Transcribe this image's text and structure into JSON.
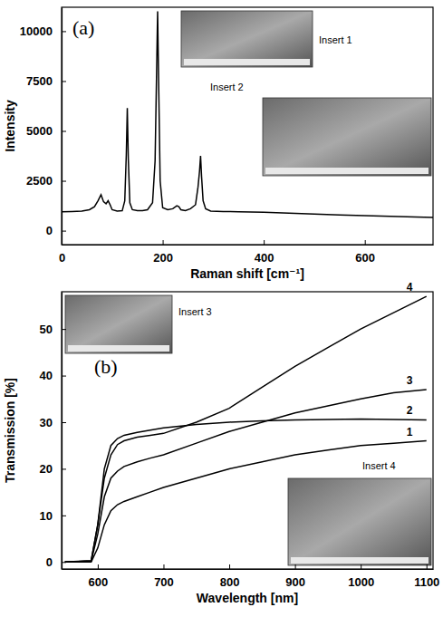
{
  "chart_data": [
    {
      "type": "line",
      "title": "(a)",
      "x_label": "Raman shift [cm⁻¹]",
      "y_label": "Intensity",
      "annotations": [
        "Insert 1",
        "Insert 2"
      ],
      "color": "#000000",
      "x": [
        0,
        20,
        40,
        55,
        65,
        72,
        78,
        83,
        88,
        92,
        96,
        100,
        110,
        120,
        125,
        128,
        130,
        132,
        135,
        140,
        150,
        160,
        170,
        180,
        185,
        188,
        190,
        192,
        195,
        200,
        210,
        220,
        228,
        232,
        236,
        245,
        255,
        265,
        270,
        273,
        275,
        277,
        280,
        285,
        295,
        320,
        350,
        400,
        450,
        500,
        550,
        600,
        650,
        700,
        735
      ],
      "values": [
        950,
        960,
        980,
        1050,
        1200,
        1500,
        1800,
        1450,
        1350,
        1500,
        1300,
        1050,
        980,
        1000,
        1500,
        3800,
        6150,
        3600,
        1400,
        1050,
        1000,
        1000,
        1050,
        1400,
        3500,
        8000,
        11000,
        7500,
        2500,
        1150,
        1050,
        1100,
        1250,
        1200,
        1050,
        1000,
        1100,
        1300,
        2200,
        3000,
        3750,
        2700,
        1500,
        1100,
        980,
        960,
        950,
        920,
        880,
        830,
        790,
        750,
        720,
        680,
        660
      ],
      "xlim": [
        0,
        735
      ],
      "xticks": [
        0,
        200,
        400,
        600
      ],
      "ylim": [
        -700,
        11200
      ],
      "yticks": [
        0,
        2500,
        5000,
        7500,
        10000
      ]
    },
    {
      "type": "line",
      "title": "(b)",
      "x_label": "Wavelength [nm]",
      "y_label": "Transmission [%]",
      "annotations": [
        "Insert 3",
        "Insert 4"
      ],
      "x": [
        550,
        590,
        600,
        610,
        620,
        630,
        640,
        660,
        680,
        700,
        750,
        800,
        850,
        900,
        950,
        1000,
        1050,
        1100
      ],
      "series": [
        {
          "name": "1",
          "color": "#000000",
          "values": [
            0,
            0,
            3,
            8,
            11,
            12.3,
            13,
            14,
            15,
            16,
            18,
            20,
            21.5,
            23,
            24,
            25,
            25.5,
            26
          ]
        },
        {
          "name": "2",
          "color": "#000000",
          "values": [
            0,
            0.3,
            8,
            20,
            25,
            26.5,
            27.2,
            27.8,
            28.3,
            28.8,
            29.5,
            30,
            30.3,
            30.5,
            30.6,
            30.7,
            30.6,
            30.5
          ]
        },
        {
          "name": "3",
          "color": "#000000",
          "values": [
            0,
            0.2,
            6,
            14,
            18,
            19.5,
            20.5,
            21.5,
            22.3,
            23,
            25.5,
            28,
            30,
            32,
            33.5,
            35,
            36.3,
            37
          ]
        },
        {
          "name": "4",
          "color": "#000000",
          "values": [
            0,
            0.2,
            8,
            18,
            23,
            25.2,
            26,
            26.8,
            27.2,
            27.6,
            30,
            33,
            37.5,
            42,
            46,
            50,
            53.5,
            57
          ]
        }
      ],
      "xlim": [
        545,
        1110
      ],
      "xticks": [
        600,
        700,
        800,
        900,
        1000,
        1100
      ],
      "ylim": [
        -1.5,
        58
      ],
      "yticks": [
        0,
        10,
        20,
        30,
        40,
        50
      ]
    }
  ]
}
